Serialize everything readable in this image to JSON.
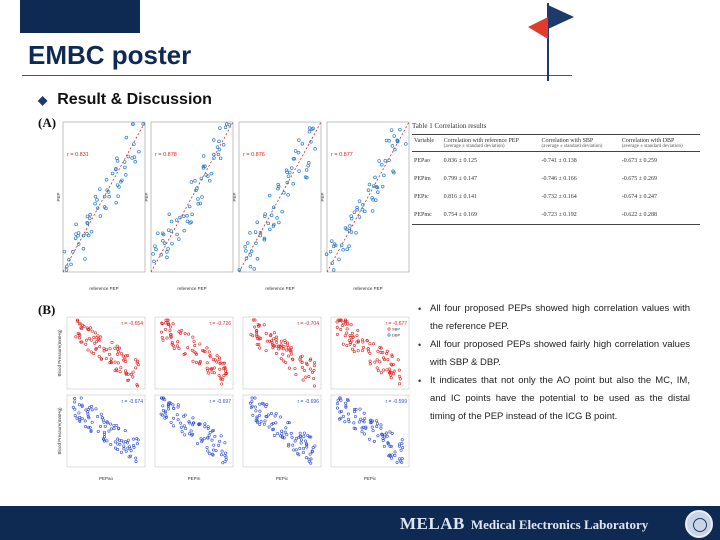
{
  "header": {
    "title": "EMBC poster",
    "section": "Result & Discussion",
    "bullet_icon": "diamond-bullet-icon"
  },
  "panels": {
    "a_label": "(A)",
    "b_label": "(B)"
  },
  "panel_a": {
    "x_label": "reference PEP",
    "y_labels": [
      "PEP",
      "PEP",
      "PEP",
      "PEP"
    ],
    "r_labels": [
      "r = 0.831",
      "r = 0.878",
      "r = 0.876",
      "r = 0.877"
    ]
  },
  "panel_b": {
    "x_labels": [
      "PEPao",
      "PEPm",
      "PEPic",
      "PEPic"
    ],
    "y_label_top": "Blood Pressure(mmHg)",
    "y_label_bottom": "Blood Pressure(mmHg)",
    "r_top": [
      "r = -0.654",
      "r = -0.726",
      "r = -0.704",
      "r = -0.677"
    ],
    "r_bottom": [
      "r = -0.674",
      "r = -0.697",
      "r = -0.696",
      "r = -0.599"
    ],
    "legend": [
      "SBP",
      "DBP"
    ]
  },
  "table": {
    "caption": "Table 1 Correlation results",
    "headers": [
      {
        "main": "Variable",
        "sub": ""
      },
      {
        "main": "Correlation with reference PEP",
        "sub": "(average ± standard deviation)"
      },
      {
        "main": "Correlation with SBP",
        "sub": "(average ± standard deviation)"
      },
      {
        "main": "Correlation with DBP",
        "sub": "(average ± standard deviation)"
      }
    ],
    "rows": [
      [
        "PEPao",
        "0.836 ± 0.125",
        "-0.741 ± 0.138",
        "-0.673 ± 0.259"
      ],
      [
        "PEPim",
        "0.799 ± 0.147",
        "-0.746 ± 0.166",
        "-0.675 ± 0.269"
      ],
      [
        "PEPic",
        "0.816 ± 0.141",
        "-0.732 ± 0.164",
        "-0.674 ± 0.247"
      ],
      [
        "PEPmc",
        "0.754 ± 0.169",
        "-0.723 ± 0.192",
        "-0.622 ± 0.288"
      ]
    ]
  },
  "bullets": [
    "All four proposed PEPs showed high correlation values with the reference PEP.",
    "All four proposed PEPs showed fairly high correlation values with SBP & DBP.",
    "It indicates that not only the AO point but also the MC, IM, and IC points have the potential to be used as the distal timing of the PEP instead of the ICG B point."
  ],
  "footer": {
    "logo": "MELAB",
    "lab_name": "Medical Electronics Laboratory"
  },
  "colors": {
    "navy": "#0f2a52",
    "blue_series": "#2f7fc1",
    "red_series": "#e02020",
    "flag_red": "#e23b2e"
  }
}
